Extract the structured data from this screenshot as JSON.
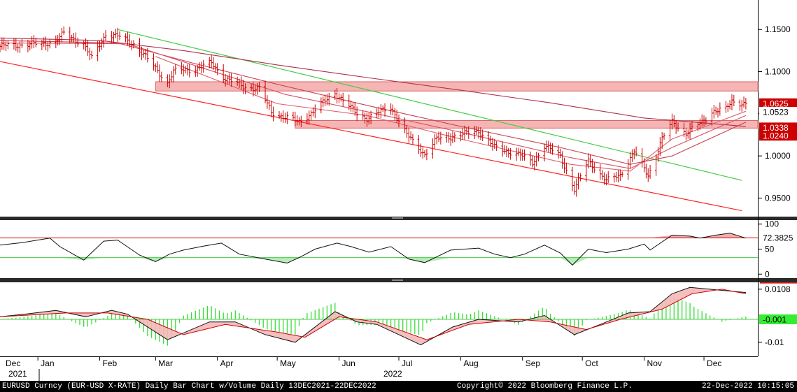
{
  "chart_data": [
    {
      "type": "line",
      "panel": "price",
      "series": [
        {
          "name": "",
          "kind": "price",
          "color": "#cc0000",
          "values": [
            [
              "2021-12-13",
              1.13
            ],
            [
              "2021-12-23",
              1.132
            ],
            [
              "2022-01-03",
              1.133
            ],
            [
              "2022-01-10",
              1.136
            ],
            [
              "2022-01-14",
              1.145
            ],
            [
              "2022-01-24",
              1.133
            ],
            [
              "2022-01-28",
              1.115
            ],
            [
              "2022-02-04",
              1.145
            ],
            [
              "2022-02-10",
              1.142
            ],
            [
              "2022-02-18",
              1.133
            ],
            [
              "2022-02-25",
              1.115
            ],
            [
              "2022-03-07",
              1.087
            ],
            [
              "2022-03-10",
              1.1
            ],
            [
              "2022-03-22",
              1.104
            ],
            [
              "2022-03-29",
              1.11
            ],
            [
              "2022-04-05",
              1.092
            ],
            [
              "2022-04-14",
              1.082
            ],
            [
              "2022-04-22",
              1.08
            ],
            [
              "2022-04-28",
              1.052
            ],
            [
              "2022-05-12",
              1.04
            ],
            [
              "2022-05-20",
              1.055
            ],
            [
              "2022-05-30",
              1.075
            ],
            [
              "2022-06-10",
              1.05
            ],
            [
              "2022-06-15",
              1.045
            ],
            [
              "2022-06-27",
              1.058
            ],
            [
              "2022-07-05",
              1.025
            ],
            [
              "2022-07-14",
              1.002
            ],
            [
              "2022-07-20",
              1.02
            ],
            [
              "2022-08-01",
              1.025
            ],
            [
              "2022-08-10",
              1.03
            ],
            [
              "2022-08-18",
              1.01
            ],
            [
              "2022-08-30",
              1.002
            ],
            [
              "2022-09-06",
              0.992
            ],
            [
              "2022-09-12",
              1.012
            ],
            [
              "2022-09-20",
              1.0
            ],
            [
              "2022-09-27",
              0.96
            ],
            [
              "2022-10-04",
              0.995
            ],
            [
              "2022-10-13",
              0.97
            ],
            [
              "2022-10-20",
              0.978
            ],
            [
              "2022-10-27",
              1.005
            ],
            [
              "2022-11-03",
              0.977
            ],
            [
              "2022-11-10",
              1.02
            ],
            [
              "2022-11-15",
              1.04
            ],
            [
              "2022-11-22",
              1.027
            ],
            [
              "2022-11-30",
              1.04
            ],
            [
              "2022-12-05",
              1.053
            ],
            [
              "2022-12-12",
              1.055
            ],
            [
              "2022-12-15",
              1.065
            ],
            [
              "2022-12-22",
              1.062
            ]
          ]
        },
        {
          "name": "",
          "kind": "moving-average",
          "color": "#b0304a",
          "values": [
            [
              "2021-12-13",
              1.14
            ],
            [
              "2022-02-01",
              1.137
            ],
            [
              "2022-03-15",
              1.125
            ],
            [
              "2022-05-01",
              1.108
            ],
            [
              "2022-06-15",
              1.093
            ],
            [
              "2022-08-01",
              1.078
            ],
            [
              "2022-09-15",
              1.063
            ],
            [
              "2022-11-01",
              1.045
            ],
            [
              "2022-12-22",
              1.035
            ]
          ]
        },
        {
          "name": "",
          "kind": "moving-average",
          "color": "#c8404f",
          "values": [
            [
              "2021-12-13",
              1.137
            ],
            [
              "2022-02-10",
              1.134
            ],
            [
              "2022-03-20",
              1.11
            ],
            [
              "2022-05-01",
              1.085
            ],
            [
              "2022-06-15",
              1.06
            ],
            [
              "2022-08-01",
              1.035
            ],
            [
              "2022-09-20",
              1.01
            ],
            [
              "2022-10-25",
              0.99
            ],
            [
              "2022-11-15",
              1.0
            ],
            [
              "2022-12-22",
              1.04
            ]
          ]
        },
        {
          "name": "",
          "kind": "moving-average",
          "color": "#d85060",
          "values": [
            [
              "2021-12-13",
              1.134
            ],
            [
              "2022-02-15",
              1.133
            ],
            [
              "2022-03-25",
              1.104
            ],
            [
              "2022-05-05",
              1.073
            ],
            [
              "2022-06-20",
              1.05
            ],
            [
              "2022-08-05",
              1.026
            ],
            [
              "2022-09-25",
              0.998
            ],
            [
              "2022-10-25",
              0.985
            ],
            [
              "2022-11-15",
              1.01
            ],
            [
              "2022-12-22",
              1.048
            ]
          ]
        },
        {
          "name": "",
          "kind": "moving-average",
          "color": "#e06070",
          "values": [
            [
              "2022-03-01",
              1.118
            ],
            [
              "2022-05-01",
              1.062
            ],
            [
              "2022-06-15",
              1.048
            ],
            [
              "2022-08-01",
              1.02
            ],
            [
              "2022-09-25",
              0.99
            ],
            [
              "2022-10-25",
              0.982
            ],
            [
              "2022-11-15",
              1.02
            ],
            [
              "2022-12-22",
              1.053
            ]
          ]
        }
      ],
      "trendlines": [
        {
          "color": "#44cc44",
          "from": [
            "2022-02-10",
            1.15
          ],
          "to": [
            "2022-12-20",
            0.971
          ]
        },
        {
          "color": "#ff2222",
          "from": [
            "2021-12-13",
            1.112
          ],
          "to": [
            "2022-12-20",
            0.935
          ]
        }
      ],
      "bands": [
        {
          "from": "2022-03-01",
          "to": "2022-12-31",
          "y1": 1.077,
          "y2": 1.088,
          "fill": "#f6b5b5",
          "stroke": "#d86666"
        },
        {
          "from": "2022-05-10",
          "to": "2022-12-31",
          "y1": 1.033,
          "y2": 1.042,
          "fill": "#f6b5b5",
          "stroke": "#d86666"
        }
      ],
      "ylim": [
        0.928,
        1.185
      ],
      "yticks": [
        "1.1500",
        "1.1000",
        "1.0500",
        "1.0000",
        "0.9500"
      ],
      "price_tags": [
        {
          "label": "1.0625",
          "value": 1.0625,
          "bg": "#cc0000",
          "fg": "#ffffff"
        },
        {
          "label": "1.0523",
          "value": 1.0523,
          "bg": "#ffffff",
          "fg": "#000000"
        },
        {
          "label": "1.0338",
          "value": 1.0338,
          "bg": "#cc0000",
          "fg": "#ffffff"
        },
        {
          "label": "1.0240",
          "value": 1.024,
          "bg": "#cc0000",
          "fg": "#ffffff"
        }
      ]
    },
    {
      "type": "line",
      "panel": "oscillator",
      "series": [
        {
          "name": "",
          "color": "#111111",
          "values": [
            [
              "2021-12-13",
              58
            ],
            [
              "2021-12-24",
              63
            ],
            [
              "2022-01-07",
              72
            ],
            [
              "2022-01-12",
              55
            ],
            [
              "2022-01-24",
              28
            ],
            [
              "2022-02-03",
              66
            ],
            [
              "2022-02-10",
              68
            ],
            [
              "2022-02-21",
              38
            ],
            [
              "2022-03-01",
              25
            ],
            [
              "2022-03-08",
              40
            ],
            [
              "2022-03-15",
              48
            ],
            [
              "2022-03-25",
              56
            ],
            [
              "2022-04-03",
              62
            ],
            [
              "2022-04-12",
              40
            ],
            [
              "2022-04-25",
              30
            ],
            [
              "2022-05-06",
              22
            ],
            [
              "2022-05-13",
              35
            ],
            [
              "2022-05-20",
              50
            ],
            [
              "2022-05-31",
              62
            ],
            [
              "2022-06-07",
              55
            ],
            [
              "2022-06-16",
              44
            ],
            [
              "2022-06-27",
              55
            ],
            [
              "2022-07-06",
              30
            ],
            [
              "2022-07-14",
              23
            ],
            [
              "2022-07-27",
              48
            ],
            [
              "2022-08-10",
              52
            ],
            [
              "2022-08-18",
              40
            ],
            [
              "2022-08-26",
              33
            ],
            [
              "2022-09-02",
              40
            ],
            [
              "2022-09-12",
              58
            ],
            [
              "2022-09-20",
              42
            ],
            [
              "2022-09-26",
              18
            ],
            [
              "2022-10-04",
              50
            ],
            [
              "2022-10-13",
              43
            ],
            [
              "2022-10-24",
              50
            ],
            [
              "2022-11-01",
              60
            ],
            [
              "2022-11-04",
              48
            ],
            [
              "2022-11-15",
              78
            ],
            [
              "2022-11-24",
              76
            ],
            [
              "2022-11-29",
              72
            ],
            [
              "2022-12-07",
              78
            ],
            [
              "2022-12-14",
              82
            ],
            [
              "2022-12-22",
              72
            ]
          ]
        }
      ],
      "levels": [
        {
          "value": 72.3825,
          "color": "#cc0000"
        },
        {
          "value": 33,
          "color": "#44cc44"
        }
      ],
      "ylim": [
        -8,
        108
      ],
      "yticks": [
        "100",
        "50",
        "0"
      ],
      "value_tag": "72.3825"
    },
    {
      "type": "line",
      "panel": "macd",
      "series": [
        {
          "name": "",
          "color": "#111111",
          "values": [
            [
              "2021-12-13",
              0.0
            ],
            [
              "2021-12-25",
              0.001
            ],
            [
              "2022-01-10",
              0.0025
            ],
            [
              "2022-01-25",
              0.0
            ],
            [
              "2022-02-07",
              0.0025
            ],
            [
              "2022-02-15",
              0.001
            ],
            [
              "2022-03-07",
              -0.009
            ],
            [
              "2022-03-28",
              -0.002
            ],
            [
              "2022-04-10",
              -0.002
            ],
            [
              "2022-04-25",
              -0.007
            ],
            [
              "2022-05-10",
              -0.01
            ],
            [
              "2022-05-30",
              0.002
            ],
            [
              "2022-06-10",
              -0.002
            ],
            [
              "2022-06-20",
              -0.003
            ],
            [
              "2022-07-12",
              -0.011
            ],
            [
              "2022-07-28",
              -0.004
            ],
            [
              "2022-08-10",
              -0.001
            ],
            [
              "2022-08-30",
              -0.002
            ],
            [
              "2022-09-12",
              0.0005
            ],
            [
              "2022-09-27",
              -0.007
            ],
            [
              "2022-10-10",
              -0.003
            ],
            [
              "2022-10-24",
              0.0015
            ],
            [
              "2022-11-04",
              0.002
            ],
            [
              "2022-11-15",
              0.009
            ],
            [
              "2022-11-24",
              0.0115
            ],
            [
              "2022-12-08",
              0.0105
            ],
            [
              "2022-12-22",
              0.0095
            ]
          ]
        },
        {
          "name": "",
          "color": "#cc0000",
          "values": [
            [
              "2021-12-13",
              0.0
            ],
            [
              "2022-01-15",
              0.0015
            ],
            [
              "2022-02-05",
              0.0015
            ],
            [
              "2022-02-25",
              -0.001
            ],
            [
              "2022-03-15",
              -0.007
            ],
            [
              "2022-04-05",
              -0.003
            ],
            [
              "2022-05-01",
              -0.006
            ],
            [
              "2022-05-15",
              -0.008
            ],
            [
              "2022-06-01",
              0.0
            ],
            [
              "2022-06-20",
              -0.002
            ],
            [
              "2022-07-15",
              -0.009
            ],
            [
              "2022-08-05",
              -0.003
            ],
            [
              "2022-08-30",
              -0.001
            ],
            [
              "2022-09-15",
              -0.002
            ],
            [
              "2022-10-03",
              -0.005
            ],
            [
              "2022-10-20",
              -0.001
            ],
            [
              "2022-11-10",
              0.003
            ],
            [
              "2022-11-25",
              0.009
            ],
            [
              "2022-12-10",
              0.0108
            ],
            [
              "2022-12-22",
              0.009
            ]
          ]
        }
      ],
      "histogram_zero": -0.001,
      "ylim": [
        -0.0155,
        0.0135
      ],
      "yticks": [
        "0.0108",
        "-0.01"
      ],
      "value_tag": "-0.001"
    }
  ],
  "x_axis": {
    "start": "2021-12-13",
    "end": "2022-12-28",
    "months": [
      {
        "label": "Dec",
        "date": "2021-12-01"
      },
      {
        "label": "Jan",
        "date": "2022-01-01"
      },
      {
        "label": "Feb",
        "date": "2022-02-01"
      },
      {
        "label": "Mar",
        "date": "2022-03-01"
      },
      {
        "label": "Apr",
        "date": "2022-04-01"
      },
      {
        "label": "May",
        "date": "2022-05-01"
      },
      {
        "label": "Jun",
        "date": "2022-06-01"
      },
      {
        "label": "Jul",
        "date": "2022-07-01"
      },
      {
        "label": "Aug",
        "date": "2022-08-01"
      },
      {
        "label": "Sep",
        "date": "2022-09-01"
      },
      {
        "label": "Oct",
        "date": "2022-10-01"
      },
      {
        "label": "Nov",
        "date": "2022-11-01"
      },
      {
        "label": "Dec",
        "date": "2022-12-01"
      }
    ],
    "years": [
      {
        "label": "2021",
        "date": "2021-12-01"
      },
      {
        "label": "2022",
        "date": "2022-07-01"
      }
    ]
  },
  "footer": {
    "description": "EURUSD Curncy (EUR-USD X-RATE) Daily Bar Chart w/Volume  Daily 13DEC2021-22DEC2022",
    "copyright": "Copyright© 2022 Bloomberg Finance L.P.",
    "timestamp": "22-Dec-2022 10:15:05"
  }
}
